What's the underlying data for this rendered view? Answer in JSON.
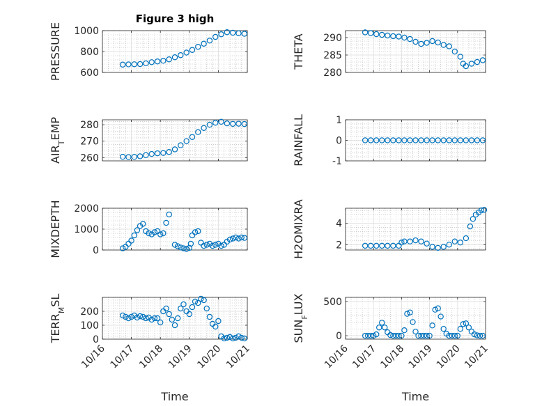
{
  "figure": {
    "title": "Figure 3 high"
  },
  "colors": {
    "marker": "#0072BD",
    "axis": "#262626",
    "grid": "#b0b0b0",
    "background": "#ffffff"
  },
  "chart_data": [
    {
      "type": "scatter",
      "marker": "open-circle",
      "title": "Figure 3 high",
      "ylabel": "PRESSURE",
      "ylim": [
        600,
        1000
      ],
      "yticks": [
        600,
        800,
        1000
      ],
      "ytick_labels": [
        "600",
        "800",
        "1000"
      ],
      "xlim": [
        0,
        5
      ],
      "xticks": [
        0,
        1,
        2,
        3,
        4,
        5
      ],
      "xtick_labels": [],
      "grid": "on",
      "x": [
        0.7,
        0.9,
        1.1,
        1.3,
        1.5,
        1.7,
        1.9,
        2.1,
        2.3,
        2.5,
        2.7,
        2.9,
        3.1,
        3.3,
        3.5,
        3.7,
        3.9,
        4.1,
        4.3,
        4.5,
        4.7,
        4.9
      ],
      "y": [
        675,
        677,
        678,
        680,
        687,
        698,
        705,
        712,
        725,
        745,
        765,
        790,
        815,
        845,
        875,
        905,
        940,
        965,
        985,
        980,
        975,
        970
      ]
    },
    {
      "type": "scatter",
      "marker": "open-circle",
      "ylabel": "THETA",
      "ylim": [
        280,
        292
      ],
      "yticks": [
        280,
        285,
        290
      ],
      "ytick_labels": [
        "280",
        "285",
        "290"
      ],
      "xlim": [
        0,
        5
      ],
      "xticks": [
        0,
        1,
        2,
        3,
        4,
        5
      ],
      "xtick_labels": [],
      "grid": "on",
      "x": [
        0.7,
        0.9,
        1.1,
        1.3,
        1.5,
        1.7,
        1.9,
        2.1,
        2.3,
        2.5,
        2.7,
        2.9,
        3.1,
        3.3,
        3.5,
        3.7,
        3.9,
        4.1,
        4.2,
        4.3,
        4.5,
        4.7,
        4.9
      ],
      "y": [
        291.5,
        291.3,
        291,
        290.8,
        290.6,
        290.4,
        290.3,
        290,
        289.6,
        288.8,
        288.2,
        288.5,
        289,
        288.6,
        287.9,
        287.5,
        286,
        284.5,
        282.5,
        281.8,
        282.5,
        283,
        283.5
      ]
    },
    {
      "type": "scatter",
      "marker": "open-circle",
      "ylabel": "AIR_TEMP",
      "ylim": [
        258,
        283
      ],
      "yticks": [
        260,
        270,
        280
      ],
      "ytick_labels": [
        "260",
        "270",
        "280"
      ],
      "xlim": [
        0,
        5
      ],
      "xticks": [
        0,
        1,
        2,
        3,
        4,
        5
      ],
      "xtick_labels": [],
      "grid": "on",
      "x": [
        0.7,
        0.9,
        1.1,
        1.3,
        1.5,
        1.7,
        1.9,
        2.1,
        2.3,
        2.5,
        2.7,
        2.9,
        3.1,
        3.3,
        3.5,
        3.7,
        3.9,
        4.1,
        4.3,
        4.5,
        4.7,
        4.9
      ],
      "y": [
        260.5,
        260.3,
        260.4,
        260.8,
        261.5,
        262.2,
        262.6,
        262.8,
        263.4,
        265,
        267.5,
        270,
        272.5,
        275.5,
        278,
        280,
        281.2,
        281.8,
        280.8,
        280.5,
        280.6,
        280.4
      ]
    },
    {
      "type": "scatter",
      "marker": "open-circle",
      "ylabel": "RAINFALL",
      "ylim": [
        -1,
        1
      ],
      "yticks": [
        -1,
        0,
        1
      ],
      "ytick_labels": [
        "-1",
        "0",
        "1"
      ],
      "xlim": [
        0,
        5
      ],
      "xticks": [
        0,
        1,
        2,
        3,
        4,
        5
      ],
      "xtick_labels": [],
      "grid": "on",
      "x": [
        0.7,
        0.9,
        1.1,
        1.3,
        1.5,
        1.7,
        1.9,
        2.1,
        2.3,
        2.5,
        2.7,
        2.9,
        3.1,
        3.3,
        3.5,
        3.7,
        3.9,
        4.1,
        4.3,
        4.5,
        4.7,
        4.9
      ],
      "y": [
        0,
        0,
        0,
        0,
        0,
        0,
        0,
        0,
        0,
        0,
        0,
        0,
        0,
        0,
        0,
        0,
        0,
        0,
        0,
        0,
        0,
        0
      ]
    },
    {
      "type": "scatter",
      "marker": "open-circle",
      "ylabel": "MIXDEPTH",
      "ylim": [
        0,
        2000
      ],
      "yticks": [
        0,
        1000,
        2000
      ],
      "ytick_labels": [
        "0",
        "1000",
        "2000"
      ],
      "xlim": [
        0,
        5
      ],
      "xticks": [
        0,
        1,
        2,
        3,
        4,
        5
      ],
      "xtick_labels": [],
      "grid": "on",
      "x": [
        0.7,
        0.8,
        0.9,
        1.0,
        1.1,
        1.2,
        1.3,
        1.4,
        1.5,
        1.6,
        1.7,
        1.8,
        1.9,
        2.0,
        2.1,
        2.2,
        2.3,
        2.5,
        2.6,
        2.7,
        2.8,
        2.9,
        3.0,
        3.05,
        3.1,
        3.2,
        3.3,
        3.4,
        3.5,
        3.6,
        3.7,
        3.8,
        3.9,
        4.0,
        4.1,
        4.2,
        4.3,
        4.4,
        4.5,
        4.6,
        4.7,
        4.8,
        4.9
      ],
      "y": [
        80,
        150,
        300,
        450,
        700,
        950,
        1150,
        1250,
        900,
        800,
        750,
        850,
        900,
        750,
        800,
        1300,
        1700,
        250,
        180,
        120,
        80,
        50,
        100,
        300,
        700,
        850,
        900,
        350,
        200,
        250,
        300,
        200,
        250,
        300,
        200,
        250,
        400,
        500,
        550,
        600,
        550,
        600,
        580
      ]
    },
    {
      "type": "scatter",
      "marker": "open-circle",
      "ylabel": "H2OMIXRA",
      "ylim": [
        1.5,
        5.4
      ],
      "yticks": [
        2,
        4
      ],
      "ytick_labels": [
        "2",
        "4"
      ],
      "xlim": [
        0,
        5
      ],
      "xticks": [
        0,
        1,
        2,
        3,
        4,
        5
      ],
      "xtick_labels": [],
      "grid": "on",
      "x": [
        0.7,
        0.9,
        1.1,
        1.3,
        1.5,
        1.7,
        1.9,
        2.0,
        2.1,
        2.3,
        2.5,
        2.7,
        2.9,
        3.1,
        3.3,
        3.5,
        3.7,
        3.9,
        4.1,
        4.3,
        4.45,
        4.55,
        4.65,
        4.75,
        4.85,
        4.95
      ],
      "y": [
        1.9,
        1.9,
        1.9,
        1.9,
        1.9,
        1.9,
        1.9,
        2.2,
        2.3,
        2.3,
        2.4,
        2.3,
        2.1,
        1.8,
        1.7,
        1.8,
        2.0,
        2.3,
        2.2,
        2.6,
        3.7,
        4.4,
        4.8,
        5.0,
        5.2,
        5.25
      ]
    },
    {
      "type": "scatter",
      "marker": "open-circle",
      "ylabel": "TERR_MSL",
      "ylim": [
        0,
        300
      ],
      "yticks": [
        0,
        100,
        200
      ],
      "ytick_labels": [
        "0",
        "100",
        "200"
      ],
      "xlim": [
        0,
        5
      ],
      "xticks": [
        0,
        1,
        2,
        3,
        4,
        5
      ],
      "xtick_labels": [
        "10/16",
        "10/17",
        "10/18",
        "10/19",
        "10/20",
        "10/21"
      ],
      "xlabel": "Time",
      "grid": "on",
      "x": [
        0.7,
        0.8,
        0.9,
        1.0,
        1.1,
        1.2,
        1.3,
        1.4,
        1.5,
        1.6,
        1.7,
        1.8,
        1.9,
        2.0,
        2.1,
        2.2,
        2.3,
        2.4,
        2.5,
        2.6,
        2.7,
        2.8,
        2.9,
        3.0,
        3.1,
        3.2,
        3.3,
        3.4,
        3.5,
        3.6,
        3.7,
        3.8,
        3.9,
        4.0,
        4.1,
        4.2,
        4.3,
        4.4,
        4.5,
        4.6,
        4.7,
        4.8,
        4.9
      ],
      "y": [
        170,
        160,
        150,
        160,
        170,
        155,
        165,
        160,
        150,
        155,
        140,
        150,
        150,
        120,
        200,
        220,
        180,
        140,
        100,
        150,
        220,
        250,
        200,
        180,
        230,
        270,
        260,
        290,
        280,
        220,
        160,
        110,
        90,
        130,
        20,
        5,
        10,
        15,
        5,
        10,
        20,
        10,
        5
      ]
    },
    {
      "type": "scatter",
      "marker": "open-circle",
      "ylabel": "SUN_FLUX",
      "ylim": [
        -50,
        560
      ],
      "yticks": [
        0,
        500
      ],
      "ytick_labels": [
        "0",
        "500"
      ],
      "xlim": [
        0,
        5
      ],
      "xticks": [
        0,
        1,
        2,
        3,
        4,
        5
      ],
      "xtick_labels": [
        "10/16",
        "10/17",
        "10/18",
        "10/19",
        "10/20",
        "10/21"
      ],
      "xlabel": "Time",
      "grid": "on",
      "x": [
        0.7,
        0.8,
        0.9,
        1.0,
        1.1,
        1.2,
        1.3,
        1.4,
        1.5,
        1.6,
        1.7,
        1.8,
        1.9,
        2.0,
        2.1,
        2.2,
        2.3,
        2.4,
        2.5,
        2.6,
        2.7,
        2.8,
        2.9,
        3.0,
        3.1,
        3.2,
        3.3,
        3.4,
        3.5,
        3.6,
        3.7,
        3.8,
        3.9,
        4.0,
        4.1,
        4.2,
        4.3,
        4.4,
        4.5,
        4.6,
        4.7,
        4.8,
        4.9
      ],
      "y": [
        0,
        0,
        0,
        0,
        20,
        120,
        190,
        120,
        50,
        10,
        0,
        0,
        0,
        0,
        80,
        320,
        340,
        200,
        60,
        0,
        0,
        0,
        0,
        0,
        150,
        380,
        400,
        280,
        100,
        30,
        0,
        0,
        0,
        0,
        100,
        170,
        180,
        120,
        60,
        20,
        5,
        0,
        0
      ]
    }
  ]
}
